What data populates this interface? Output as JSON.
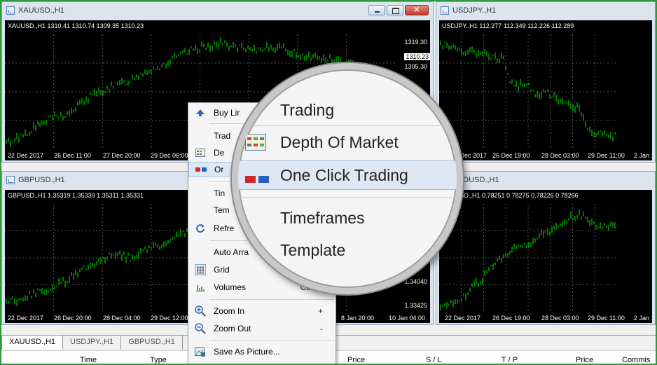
{
  "windows": {
    "xauusd": {
      "title": "XAUUSD.,H1",
      "info": "XAUUSD.,H1  1310.41 1310.74 1309.35 1310.23",
      "times": [
        "22 Dec 2017",
        "26 Dec 11:00",
        "27 Dec 20:00",
        "29 Dec 06:00"
      ],
      "prices": [
        "1319.30",
        "1305.30"
      ],
      "current_price": "1310.23"
    },
    "usdjpy": {
      "title": "USDJPY.,H1",
      "info": "USDJPY.,H1  112.277 112.349 112.226 112.289",
      "times": [
        "2 Dec 2017",
        "26 Dec 19:00",
        "28 Dec 03:00",
        "29 Dec 11:00",
        "2 Jan 1"
      ]
    },
    "gbpusd": {
      "title": "GBPUSD.,H1",
      "info": "GBPUSD.,H1  1.35319 1.35339 1.35311 1.35331",
      "times": [
        "22 Dec 2017",
        "26 Dec 20:00",
        "28 Dec 04:00",
        "29 Dec 12:00",
        "8 Jan 20:00",
        "10 Jan 04:00"
      ],
      "prices": [
        "1.34040",
        "1.33425"
      ]
    },
    "audusd": {
      "title": "AUDUSD.,H1",
      "info": "AUDUSD.,H1  0.78251 0.78275 0.78226 0.78266",
      "times": [
        "22 Dec 2017",
        "26 Dec 19:00",
        "28 Dec 03:00",
        "29 Dec 11:00",
        "2 Jan 19"
      ]
    }
  },
  "context_menu": {
    "items": [
      {
        "label": "Buy Lir",
        "shortcut": "",
        "icon": "buy-limit-icon"
      },
      {
        "label": "Trad",
        "shortcut": "",
        "icon": ""
      },
      {
        "label": "De",
        "shortcut": "",
        "icon": "depth-of-market-icon"
      },
      {
        "label": "Or",
        "shortcut": "",
        "icon": "one-click-trading-icon"
      },
      {
        "label": "Tin",
        "shortcut": "",
        "icon": ""
      },
      {
        "label": "Tem",
        "shortcut": "",
        "icon": ""
      },
      {
        "label": "Refre",
        "shortcut": "",
        "icon": "refresh-icon"
      },
      {
        "label": "Auto Arra",
        "shortcut": "",
        "icon": ""
      },
      {
        "label": "Grid",
        "shortcut": "",
        "icon": "grid-icon"
      },
      {
        "label": "Volumes",
        "shortcut": "Ctrl+L",
        "icon": "volumes-icon"
      },
      {
        "label": "Zoom In",
        "shortcut": "+",
        "icon": "zoom-in-icon"
      },
      {
        "label": "Zoom Out",
        "shortcut": "-",
        "icon": "zoom-out-icon"
      },
      {
        "label": "Save As Picture...",
        "shortcut": "",
        "icon": "save-picture-icon"
      }
    ]
  },
  "magnifier": {
    "items": [
      "Trading",
      "Depth Of Market",
      "One Click Trading",
      "Timeframes",
      "Template"
    ]
  },
  "tabs": [
    "XAUUSD.,H1",
    "USDJPY.,H1",
    "GBPUSD.,H1"
  ],
  "columns": [
    "Time",
    "Type",
    "Price",
    "S / L",
    "T / P",
    "Price",
    "Commis"
  ],
  "colors": {
    "chart_bg": "#000000",
    "candle": "#00c800",
    "frame": "#2e9a3c"
  },
  "chart_data": [
    {
      "type": "line",
      "title": "XAUUSD.,H1",
      "trend": [
        0.05,
        0.12,
        0.2,
        0.28,
        0.3,
        0.42,
        0.5,
        0.55,
        0.6,
        0.68,
        0.72,
        0.8,
        0.86,
        0.9,
        0.92,
        0.88,
        0.85,
        0.9,
        0.87,
        0.82,
        0.8,
        0.78,
        0.75,
        0.7,
        0.66,
        0.62
      ]
    },
    {
      "type": "line",
      "title": "USDJPY.,H1",
      "trend": [
        0.92,
        0.9,
        0.88,
        0.87,
        0.85,
        0.84,
        0.86,
        0.82,
        0.8,
        0.78,
        0.6,
        0.55,
        0.58,
        0.52,
        0.45,
        0.5,
        0.48,
        0.42,
        0.4,
        0.38,
        0.35,
        0.2,
        0.12,
        0.15,
        0.1,
        0.12
      ]
    },
    {
      "type": "line",
      "title": "GBPUSD.,H1",
      "trend": [
        0.1,
        0.12,
        0.18,
        0.22,
        0.3,
        0.4,
        0.48,
        0.55,
        0.5,
        0.58,
        0.62,
        0.7,
        0.75,
        0.8,
        0.82,
        0.86,
        0.9,
        0.88,
        0.85,
        0.88,
        0.9,
        0.86,
        0.82,
        0.8,
        0.78,
        0.76
      ]
    },
    {
      "type": "line",
      "title": "AUDUSD.,H1",
      "trend": [
        0.05,
        0.08,
        0.1,
        0.12,
        0.18,
        0.25,
        0.3,
        0.4,
        0.45,
        0.5,
        0.55,
        0.6,
        0.62,
        0.65,
        0.7,
        0.72,
        0.75,
        0.8,
        0.85,
        0.88,
        0.9,
        0.86,
        0.82,
        0.78,
        0.8,
        0.78
      ]
    }
  ]
}
